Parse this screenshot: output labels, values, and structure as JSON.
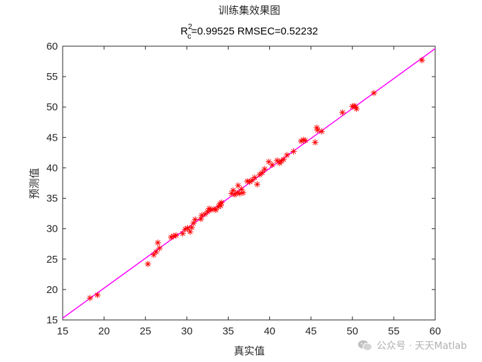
{
  "chart_data": {
    "type": "scatter",
    "title": "训练集效果图",
    "subtitle": {
      "r_main": "R",
      "r_sup": "2",
      "r_sub": "c",
      "rest": "=0.99525  RMSEC=0.52232"
    },
    "xlabel": "真实值",
    "ylabel": "预测值",
    "xlim": [
      15,
      60
    ],
    "ylim": [
      15,
      60
    ],
    "xticks": [
      "15",
      "20",
      "25",
      "30",
      "35",
      "40",
      "45",
      "50",
      "55",
      "60"
    ],
    "yticks": [
      "15",
      "20",
      "25",
      "30",
      "35",
      "40",
      "45",
      "50",
      "55",
      "60"
    ],
    "grid": false,
    "legend": "none",
    "marker_color": "#ff0000",
    "line_color": "#ff00ff",
    "fit_line": {
      "x": [
        15,
        60
      ],
      "y": [
        15.3,
        59.6
      ]
    },
    "points": [
      [
        18.3,
        18.6
      ],
      [
        19.2,
        19.1
      ],
      [
        25.3,
        24.2
      ],
      [
        26.0,
        25.7
      ],
      [
        26.5,
        27.7
      ],
      [
        26.7,
        26.8
      ],
      [
        26.3,
        26.2
      ],
      [
        28.1,
        28.6
      ],
      [
        28.4,
        28.8
      ],
      [
        28.7,
        28.9
      ],
      [
        29.5,
        29.2
      ],
      [
        29.8,
        29.9
      ],
      [
        30.1,
        30.1
      ],
      [
        30.4,
        29.5
      ],
      [
        30.6,
        30.2
      ],
      [
        30.8,
        30.9
      ],
      [
        31.0,
        31.5
      ],
      [
        31.7,
        31.6
      ],
      [
        31.8,
        32.2
      ],
      [
        32.2,
        32.4
      ],
      [
        32.5,
        32.8
      ],
      [
        32.7,
        33.3
      ],
      [
        32.9,
        33.1
      ],
      [
        33.3,
        33.2
      ],
      [
        33.5,
        33.1
      ],
      [
        33.8,
        33.6
      ],
      [
        34.0,
        34.1
      ],
      [
        34.2,
        34.3
      ],
      [
        34.1,
        33.8
      ],
      [
        35.4,
        35.8
      ],
      [
        35.6,
        36.3
      ],
      [
        35.8,
        35.6
      ],
      [
        36.1,
        35.9
      ],
      [
        36.2,
        37.1
      ],
      [
        36.4,
        35.8
      ],
      [
        36.6,
        36.5
      ],
      [
        36.8,
        35.9
      ],
      [
        37.3,
        37.8
      ],
      [
        37.6,
        37.7
      ],
      [
        37.9,
        38.0
      ],
      [
        38.2,
        38.4
      ],
      [
        38.5,
        37.3
      ],
      [
        38.8,
        38.9
      ],
      [
        39.1,
        39.2
      ],
      [
        39.4,
        39.8
      ],
      [
        39.9,
        41.0
      ],
      [
        40.3,
        40.5
      ],
      [
        40.9,
        41.2
      ],
      [
        41.2,
        40.8
      ],
      [
        41.4,
        41.1
      ],
      [
        41.7,
        41.4
      ],
      [
        42.1,
        42.1
      ],
      [
        42.9,
        42.7
      ],
      [
        43.8,
        44.4
      ],
      [
        44.1,
        44.6
      ],
      [
        44.3,
        44.5
      ],
      [
        45.5,
        44.2
      ],
      [
        45.7,
        46.6
      ],
      [
        45.8,
        46.2
      ],
      [
        46.3,
        46.0
      ],
      [
        48.8,
        49.1
      ],
      [
        50.0,
        50.1
      ],
      [
        50.2,
        50.2
      ],
      [
        50.4,
        50.0
      ],
      [
        50.5,
        49.7
      ],
      [
        52.6,
        52.3
      ],
      [
        58.4,
        57.7
      ]
    ]
  },
  "watermark": {
    "text": "公众号 · 天天Matlab",
    "icon": "wechat-icon"
  }
}
